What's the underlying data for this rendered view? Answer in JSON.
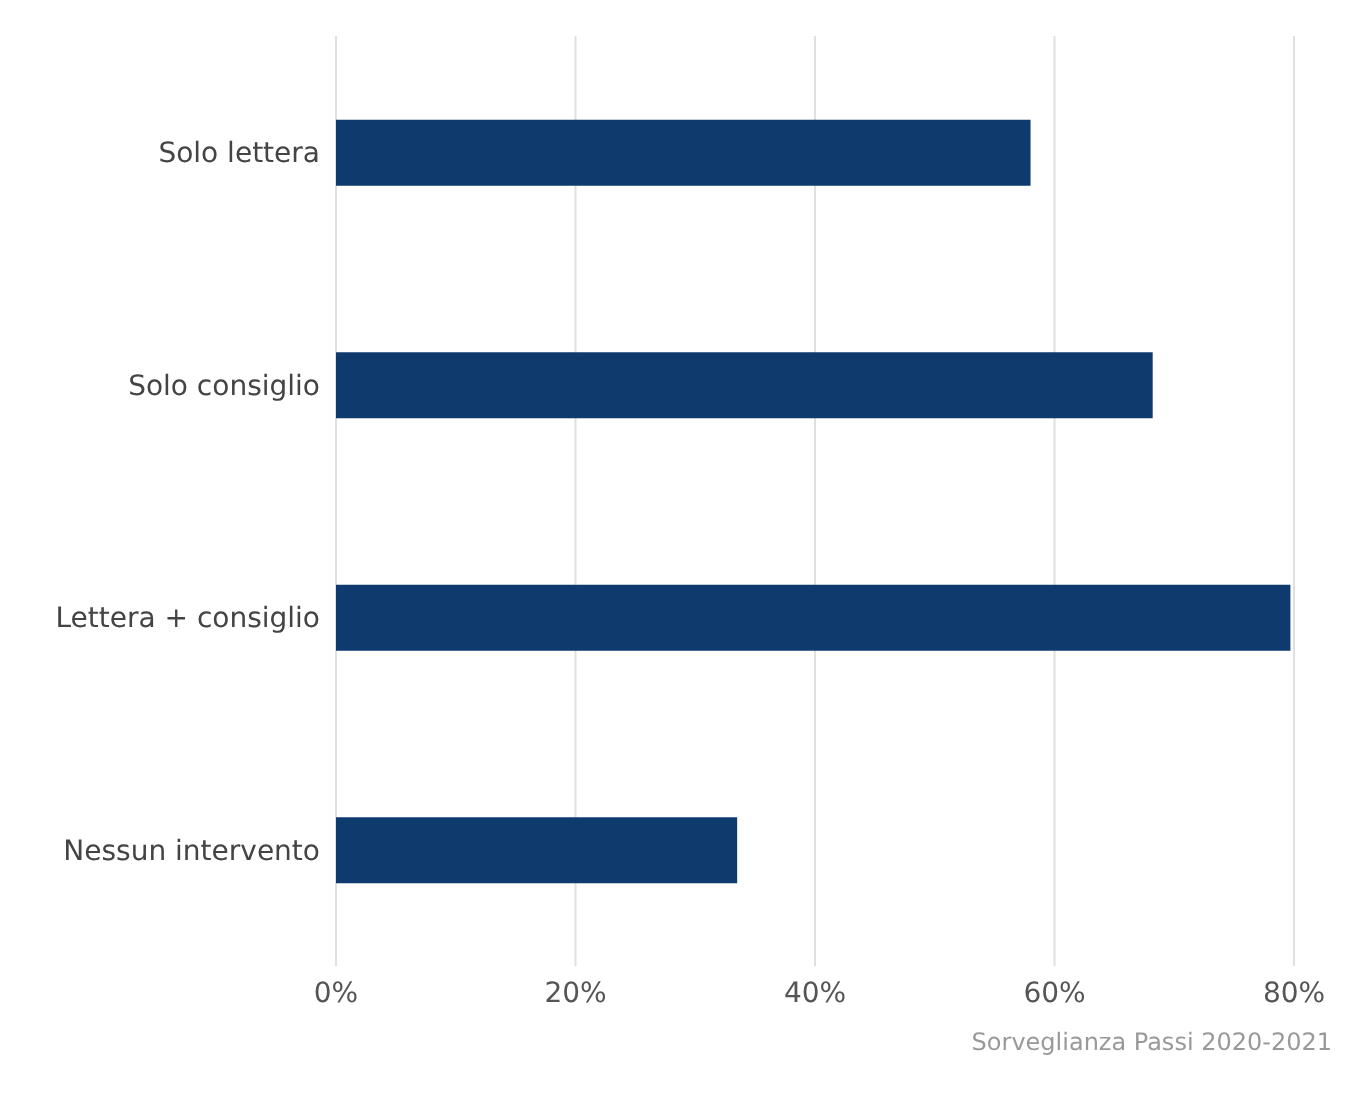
{
  "chart_data": {
    "type": "bar",
    "orientation": "horizontal",
    "categories": [
      "Solo lettera",
      "Solo consiglio",
      "Lettera + consiglio",
      "Nessun intervento"
    ],
    "values": [
      58,
      68.2,
      79.7,
      33.5
    ],
    "color": "#0e3a6e",
    "xlim": [
      0,
      80
    ],
    "xticks": [
      {
        "value": 0,
        "label": "0%"
      },
      {
        "value": 20,
        "label": "20%"
      },
      {
        "value": 40,
        "label": "40%"
      },
      {
        "value": 60,
        "label": "60%"
      },
      {
        "value": 80,
        "label": "80%"
      }
    ],
    "grid": "x",
    "annotations": [
      "Sorveglianza Passi 2020-2021"
    ]
  }
}
